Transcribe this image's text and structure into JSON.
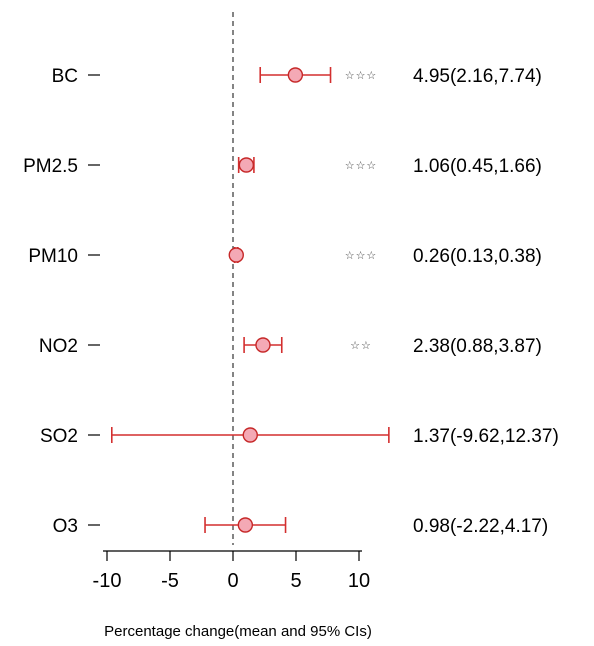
{
  "chart_data": {
    "type": "forest",
    "title": "",
    "xlabel": "Percentage change(mean and 95% CIs)",
    "ylabel": "",
    "xlim": [
      -10,
      12.37
    ],
    "xticks": [
      -10,
      -5,
      0,
      5,
      10
    ],
    "xtick_labels": [
      "-10",
      "-5",
      "0",
      "5",
      "10"
    ],
    "reference_line": 0,
    "reference_line_style": "dashed",
    "colors": {
      "ci_line": "#d32f2f",
      "point_fill": "#f4a9b5",
      "point_stroke": "#c62828",
      "reference_line": "#333333",
      "text": "#000000"
    },
    "rows": [
      {
        "label": "BC",
        "mean": 4.95,
        "lower": 2.16,
        "upper": 7.74,
        "significance": "☆☆☆",
        "value_text": "4.95(2.16,7.74)"
      },
      {
        "label": "PM2.5",
        "mean": 1.06,
        "lower": 0.45,
        "upper": 1.66,
        "significance": "☆☆☆",
        "value_text": "1.06(0.45,1.66)"
      },
      {
        "label": "PM10",
        "mean": 0.26,
        "lower": 0.13,
        "upper": 0.38,
        "significance": "☆☆☆",
        "value_text": "0.26(0.13,0.38)"
      },
      {
        "label": "NO2",
        "mean": 2.38,
        "lower": 0.88,
        "upper": 3.87,
        "significance": "☆☆",
        "value_text": "2.38(0.88,3.87)"
      },
      {
        "label": "SO2",
        "mean": 1.37,
        "lower": -9.62,
        "upper": 12.37,
        "significance": "",
        "value_text": "1.37(-9.62,12.37)"
      },
      {
        "label": "O3",
        "mean": 0.98,
        "lower": -2.22,
        "upper": 4.17,
        "significance": "",
        "value_text": "0.98(-2.22,4.17)"
      }
    ]
  }
}
